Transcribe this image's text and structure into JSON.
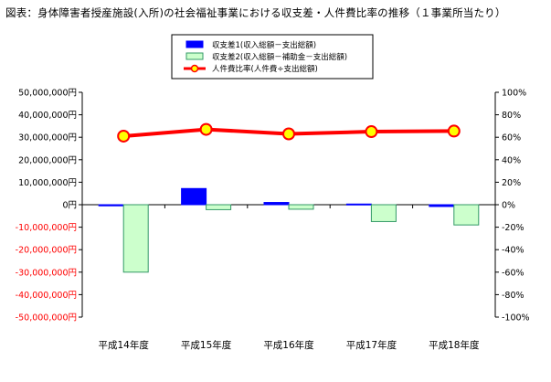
{
  "page": {
    "title": "図表：身体障害者授産施設(入所)の社会福祉事業における収支差・人件費比率の推移（１事業所当たり）"
  },
  "chart_data": {
    "type": "bar",
    "title": "図表：身体障害者授産施設(入所)の社会福祉事業における収支差・人件費比率の推移（１事業所当たり）",
    "categories": [
      "平成14年度",
      "平成15年度",
      "平成16年度",
      "平成17年度",
      "平成18年度"
    ],
    "series": [
      {
        "name": "収支差1(収入総額－支出総額)",
        "type": "bar",
        "axis": "left",
        "color": "#0000ff",
        "values": [
          -500000,
          7200000,
          1000000,
          300000,
          -800000
        ]
      },
      {
        "name": "収支差2(収入総額－補助金－支出総額)",
        "type": "bar",
        "axis": "left",
        "color": "#ccffcc",
        "edge": "#339966",
        "values": [
          -30000000,
          -2200000,
          -2000000,
          -7500000,
          -9000000
        ]
      },
      {
        "name": "人件費比率(人件費÷支出総額)",
        "type": "line",
        "axis": "right",
        "color": "#ff0000",
        "marker": "#ffff00",
        "unit": "%",
        "values": [
          61,
          67,
          63,
          65,
          65.5
        ]
      }
    ],
    "y_left": {
      "ylim": [
        -50000000,
        50000000
      ],
      "ticks": [
        {
          "value": 50000000,
          "label": "50,000,000円"
        },
        {
          "value": 40000000,
          "label": "40,000,000円"
        },
        {
          "value": 30000000,
          "label": "30,000,000円"
        },
        {
          "value": 20000000,
          "label": "20,000,000円"
        },
        {
          "value": 10000000,
          "label": "10,000,000円"
        },
        {
          "value": 0,
          "label": "0円"
        },
        {
          "value": -10000000,
          "label": "-10,000,000円"
        },
        {
          "value": -20000000,
          "label": "-20,000,000円"
        },
        {
          "value": -30000000,
          "label": "-30,000,000円"
        },
        {
          "value": -40000000,
          "label": "-40,000,000円"
        },
        {
          "value": -50000000,
          "label": "-50,000,000円"
        }
      ],
      "negative_label_color": "#ff0000"
    },
    "y_right": {
      "ylim": [
        -100,
        100
      ],
      "ticks": [
        {
          "value": 100,
          "label": "100%"
        },
        {
          "value": 80,
          "label": "80%"
        },
        {
          "value": 60,
          "label": "60%"
        },
        {
          "value": 40,
          "label": "40%"
        },
        {
          "value": 20,
          "label": "20%"
        },
        {
          "value": 0,
          "label": "0%"
        },
        {
          "value": -20,
          "label": "-20%"
        },
        {
          "value": -40,
          "label": "-40%"
        },
        {
          "value": -60,
          "label": "-60%"
        },
        {
          "value": -80,
          "label": "-80%"
        },
        {
          "value": -100,
          "label": "-100%"
        }
      ]
    },
    "grid": false,
    "legend_position": "top-center"
  }
}
